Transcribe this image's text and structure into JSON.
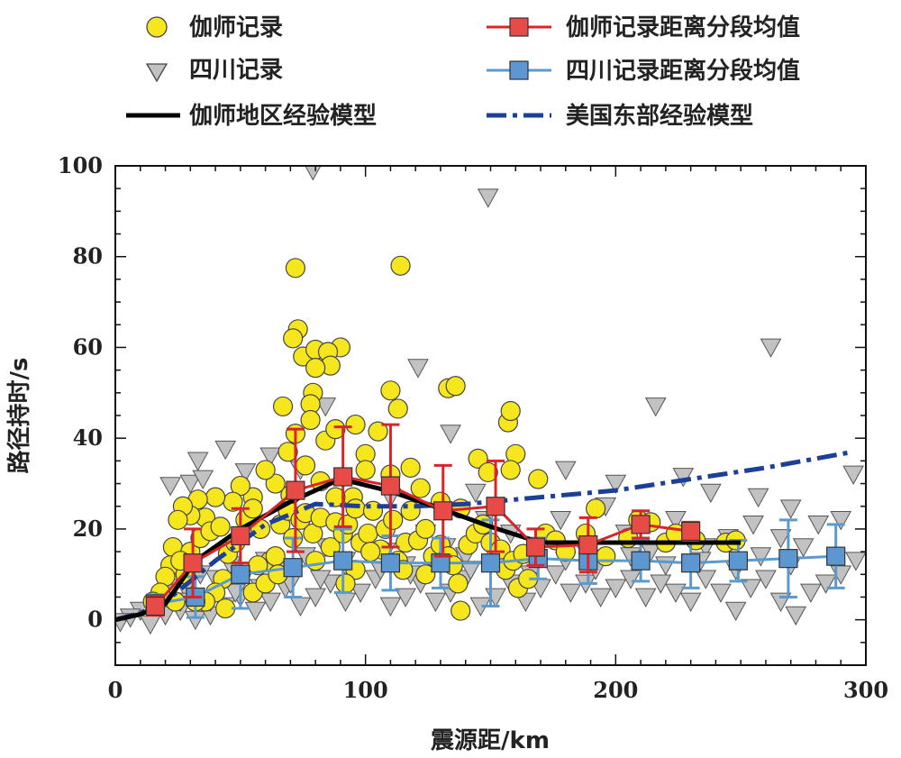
{
  "chart_data": {
    "type": "scatter",
    "xlabel": "震源距/km",
    "ylabel": "路径持时/s",
    "xlim": [
      0,
      300
    ],
    "ylim": [
      -10,
      100
    ],
    "xticks": [
      0,
      100,
      200,
      300
    ],
    "yticks": [
      0,
      20,
      40,
      60,
      80,
      100
    ],
    "grid": false,
    "legend_position": "top",
    "colors": {
      "jiashi_points": "#f5e61e",
      "sichuan_points": "#b4b4b4",
      "jiashi_mean": "#d9252a",
      "jiashi_mean_marker": "#e84a45",
      "sichuan_mean": "#5a9ad0",
      "sichuan_mean_marker": "#5c97d1",
      "jiashi_model": "#000000",
      "us_model": "#1c3f9a"
    },
    "legend": [
      {
        "key": "jiashi_points",
        "label": "伽师记录"
      },
      {
        "key": "jiashi_mean",
        "label": "伽师记录距离分段均值"
      },
      {
        "key": "sichuan_points",
        "label": "四川记录"
      },
      {
        "key": "sichuan_mean",
        "label": "四川记录距离分段均值"
      },
      {
        "key": "jiashi_model",
        "label": "伽师地区经验模型"
      },
      {
        "key": "us_model",
        "label": "美国东部经验模型"
      }
    ],
    "series": [
      {
        "name": "伽师记录距离分段均值",
        "kind": "mean_errorbar",
        "x": [
          16,
          31,
          50,
          72,
          91,
          110,
          131,
          152,
          168,
          189,
          210,
          230
        ],
        "y": [
          3,
          12.5,
          18.5,
          28.5,
          31.5,
          29.5,
          24,
          25,
          16,
          16.5,
          21,
          19.5
        ],
        "err": [
          2,
          7.5,
          6,
          13.5,
          11,
          13.5,
          10,
          10,
          4,
          6,
          3,
          2
        ]
      },
      {
        "name": "四川记录距离分段均值",
        "kind": "mean_errorbar",
        "x": [
          16,
          32,
          50,
          71,
          91,
          110,
          130,
          150,
          169,
          189,
          210,
          230,
          249,
          269,
          288
        ],
        "y": [
          3.5,
          5,
          10,
          11.5,
          13,
          12.5,
          12.5,
          12.5,
          13.5,
          13,
          13,
          12.5,
          13,
          13.5,
          14
        ],
        "err": [
          2,
          4.5,
          7.5,
          6.5,
          7,
          6,
          5.5,
          9.5,
          4.5,
          5,
          4.5,
          5.5,
          4.5,
          8.5,
          7
        ]
      },
      {
        "name": "伽师地区经验模型",
        "kind": "line",
        "x": [
          0,
          10,
          20,
          32,
          50,
          70,
          90,
          110,
          130,
          150,
          170,
          190,
          210,
          230,
          250
        ],
        "y": [
          0,
          1.2,
          3.5,
          13,
          20,
          26,
          31,
          28.3,
          24.5,
          20.5,
          17,
          17,
          17,
          17,
          17
        ]
      },
      {
        "name": "美国东部经验模型",
        "kind": "line",
        "x": [
          0,
          10,
          20,
          40,
          60,
          80,
          100,
          120,
          140,
          150,
          170,
          200,
          230,
          260,
          295
        ],
        "y": [
          0,
          1.5,
          4,
          13,
          21,
          25.5,
          25,
          25,
          25.5,
          26,
          27,
          28.5,
          31,
          33.5,
          37
        ]
      },
      {
        "name": "伽师记录",
        "kind": "points",
        "points": [
          [
            72,
            77.5
          ],
          [
            114,
            78
          ],
          [
            73,
            64
          ],
          [
            71,
            62
          ],
          [
            75,
            58
          ],
          [
            80,
            59.5
          ],
          [
            90,
            60
          ],
          [
            85,
            59
          ],
          [
            86,
            56
          ],
          [
            80,
            55.5
          ],
          [
            79,
            50
          ],
          [
            78,
            47.5
          ],
          [
            110,
            50.5
          ],
          [
            113,
            46.5
          ],
          [
            67,
            47
          ],
          [
            69,
            37
          ],
          [
            72,
            41
          ],
          [
            78,
            44
          ],
          [
            84,
            39.5
          ],
          [
            88,
            42
          ],
          [
            96,
            43
          ],
          [
            100,
            36.5
          ],
          [
            105,
            41.5
          ],
          [
            133,
            51
          ],
          [
            136,
            51.5
          ],
          [
            145,
            35.5
          ],
          [
            157,
            43.5
          ],
          [
            158,
            46
          ],
          [
            160,
            36.5
          ],
          [
            158,
            33
          ],
          [
            169,
            31
          ],
          [
            149,
            32.5
          ],
          [
            130,
            26
          ],
          [
            138,
            24.5
          ],
          [
            122,
            29
          ],
          [
            118,
            33.5
          ],
          [
            110,
            32
          ],
          [
            100,
            33
          ],
          [
            95,
            27
          ],
          [
            88,
            27
          ],
          [
            82,
            30.5
          ],
          [
            76,
            34
          ],
          [
            70,
            27.5
          ],
          [
            64,
            30
          ],
          [
            60,
            33
          ],
          [
            55,
            27
          ],
          [
            50,
            29.5
          ],
          [
            47,
            26
          ],
          [
            40,
            27
          ],
          [
            36,
            22.5
          ],
          [
            33,
            26.5
          ],
          [
            30,
            23
          ],
          [
            27,
            25
          ],
          [
            25,
            22
          ],
          [
            23,
            16
          ],
          [
            22,
            12
          ],
          [
            20,
            9.5
          ],
          [
            18,
            6
          ],
          [
            15,
            4
          ],
          [
            24,
            4
          ],
          [
            30,
            15
          ],
          [
            34,
            18
          ],
          [
            38,
            19.5
          ],
          [
            42,
            20.5
          ],
          [
            45,
            14.5
          ],
          [
            48,
            17
          ],
          [
            52,
            22
          ],
          [
            55,
            24.5
          ],
          [
            58,
            20
          ],
          [
            62,
            13
          ],
          [
            64,
            14
          ],
          [
            66,
            21
          ],
          [
            69,
            24
          ],
          [
            71,
            18
          ],
          [
            74,
            22
          ],
          [
            76,
            23.5
          ],
          [
            79,
            19
          ],
          [
            82,
            22.5
          ],
          [
            86,
            16
          ],
          [
            88,
            21.5
          ],
          [
            91,
            19
          ],
          [
            93,
            21
          ],
          [
            96,
            24.5
          ],
          [
            98,
            17
          ],
          [
            101,
            19
          ],
          [
            103,
            24
          ],
          [
            106,
            15.5
          ],
          [
            108,
            20
          ],
          [
            111,
            22
          ],
          [
            113,
            13
          ],
          [
            116,
            17
          ],
          [
            118,
            24
          ],
          [
            121,
            17.5
          ],
          [
            124,
            20
          ],
          [
            127,
            14
          ],
          [
            130,
            16.5
          ],
          [
            133,
            14
          ],
          [
            135,
            12
          ],
          [
            137,
            8
          ],
          [
            138,
            2
          ],
          [
            141,
            16.5
          ],
          [
            144,
            19
          ],
          [
            147,
            21
          ],
          [
            150,
            17
          ],
          [
            154,
            15.5
          ],
          [
            156,
            11
          ],
          [
            159,
            13
          ],
          [
            161,
            7
          ],
          [
            163,
            14.5
          ],
          [
            165,
            9
          ],
          [
            172,
            19
          ],
          [
            176,
            17.5
          ],
          [
            180,
            15
          ],
          [
            188,
            19
          ],
          [
            192,
            24.5
          ],
          [
            196,
            14
          ],
          [
            205,
            18
          ],
          [
            209,
            22
          ],
          [
            214,
            21.5
          ],
          [
            220,
            17
          ],
          [
            224,
            19
          ],
          [
            232,
            17.5
          ],
          [
            244,
            17
          ],
          [
            248,
            17.5
          ],
          [
            50,
            10
          ],
          [
            43,
            9
          ],
          [
            40,
            6
          ],
          [
            36,
            4
          ],
          [
            32,
            4
          ],
          [
            28,
            10
          ],
          [
            26,
            13
          ],
          [
            44,
            2.5
          ],
          [
            55,
            6
          ],
          [
            60,
            8
          ],
          [
            57,
            12
          ],
          [
            65,
            10
          ],
          [
            80,
            13
          ],
          [
            96,
            11
          ],
          [
            102,
            15
          ],
          [
            92,
            8
          ],
          [
            124,
            10
          ],
          [
            115,
            11
          ]
        ]
      },
      {
        "name": "四川记录",
        "kind": "points",
        "points": [
          [
            79,
            99
          ],
          [
            149,
            93
          ],
          [
            262,
            60
          ],
          [
            121,
            55.5
          ],
          [
            216,
            47
          ],
          [
            84,
            47
          ],
          [
            134,
            41
          ],
          [
            44,
            37.5
          ],
          [
            62,
            36
          ],
          [
            33,
            35
          ],
          [
            30,
            30
          ],
          [
            22,
            29.5
          ],
          [
            35,
            31
          ],
          [
            52,
            32.5
          ],
          [
            74,
            33
          ],
          [
            110,
            27
          ],
          [
            144,
            28
          ],
          [
            180,
            33
          ],
          [
            200,
            30
          ],
          [
            227,
            31.5
          ],
          [
            238,
            28
          ],
          [
            257,
            27
          ],
          [
            270,
            24.5
          ],
          [
            295,
            32
          ],
          [
            290,
            22
          ],
          [
            281,
            21
          ],
          [
            275,
            16
          ],
          [
            266,
            18
          ],
          [
            255,
            21
          ],
          [
            245,
            18
          ],
          [
            236,
            16
          ],
          [
            224,
            22
          ],
          [
            214,
            15
          ],
          [
            204,
            19
          ],
          [
            196,
            25
          ],
          [
            188,
            15
          ],
          [
            178,
            22
          ],
          [
            168,
            16
          ],
          [
            158,
            19
          ],
          [
            148,
            22
          ],
          [
            140,
            14
          ],
          [
            132,
            16
          ],
          [
            124,
            19
          ],
          [
            116,
            12
          ],
          [
            108,
            15
          ],
          [
            100,
            17
          ],
          [
            92,
            13
          ],
          [
            84,
            16
          ],
          [
            76,
            14
          ],
          [
            68,
            11
          ],
          [
            60,
            13
          ],
          [
            52,
            10
          ],
          [
            46,
            12
          ],
          [
            40,
            9
          ],
          [
            34,
            10
          ],
          [
            28,
            7
          ],
          [
            22,
            6
          ],
          [
            16,
            3
          ],
          [
            10,
            2
          ],
          [
            6,
            0.5
          ],
          [
            2,
            -0.5
          ],
          [
            14,
            -1
          ],
          [
            20,
            1
          ],
          [
            26,
            2
          ],
          [
            32,
            0
          ],
          [
            38,
            1
          ],
          [
            44,
            3
          ],
          [
            50,
            5
          ],
          [
            56,
            2
          ],
          [
            62,
            4
          ],
          [
            68,
            7
          ],
          [
            74,
            3
          ],
          [
            80,
            5
          ],
          [
            86,
            8
          ],
          [
            92,
            4
          ],
          [
            98,
            6
          ],
          [
            104,
            9
          ],
          [
            110,
            3
          ],
          [
            116,
            5
          ],
          [
            122,
            8
          ],
          [
            128,
            4
          ],
          [
            134,
            6
          ],
          [
            140,
            9
          ],
          [
            146,
            3
          ],
          [
            152,
            5
          ],
          [
            158,
            8
          ],
          [
            164,
            4
          ],
          [
            170,
            7
          ],
          [
            176,
            10
          ],
          [
            182,
            6
          ],
          [
            188,
            8
          ],
          [
            194,
            5
          ],
          [
            200,
            7
          ],
          [
            206,
            9
          ],
          [
            212,
            5
          ],
          [
            218,
            8
          ],
          [
            224,
            6
          ],
          [
            230,
            4
          ],
          [
            236,
            9
          ],
          [
            242,
            6
          ],
          [
            248,
            2
          ],
          [
            254,
            7
          ],
          [
            260,
            9
          ],
          [
            266,
            4
          ],
          [
            272,
            1
          ],
          [
            278,
            6
          ],
          [
            284,
            8
          ],
          [
            290,
            10
          ],
          [
            296,
            13
          ],
          [
            270,
            12
          ],
          [
            258,
            14
          ],
          [
            248,
            11
          ],
          [
            234,
            13
          ],
          [
            220,
            12
          ],
          [
            206,
            14
          ],
          [
            192,
            11
          ],
          [
            180,
            13
          ],
          [
            166,
            10
          ],
          [
            154,
            12
          ],
          [
            142,
            11
          ],
          [
            130,
            13
          ],
          [
            118,
            10
          ],
          [
            106,
            11
          ],
          [
            94,
            10
          ],
          [
            82,
            9
          ],
          [
            70,
            8
          ],
          [
            58,
            7
          ],
          [
            48,
            6
          ],
          [
            38,
            4
          ],
          [
            26,
            4
          ]
        ]
      }
    ]
  }
}
